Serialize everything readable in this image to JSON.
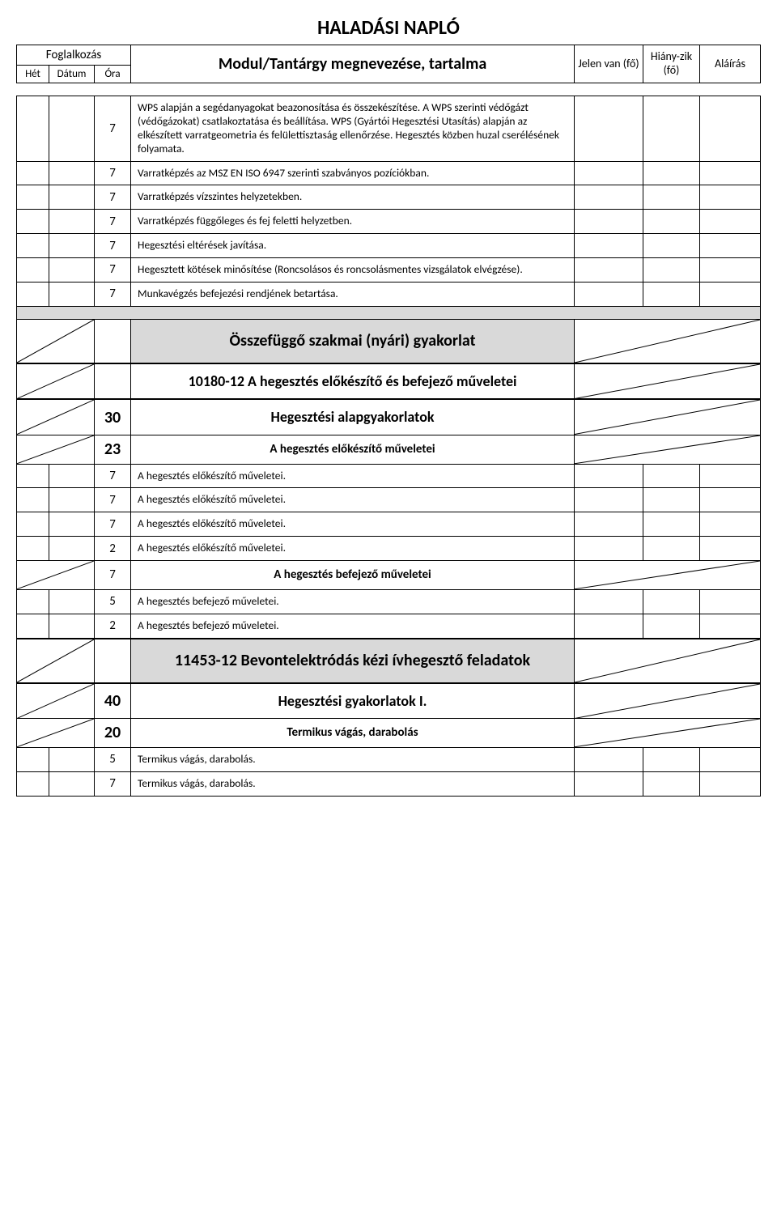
{
  "title": "HALADÁSI NAPLÓ",
  "headers": {
    "foglalkozas": "Foglalkozás",
    "het": "Hét",
    "datum": "Dátum",
    "ora": "Óra",
    "main": "Modul/Tantárgy megnevezése, tartalma",
    "jelen": "Jelen van (fő)",
    "hiany": "Hiány-zik (fő)",
    "alairas": "Aláírás"
  },
  "rows": [
    {
      "ora": "7",
      "text": "WPS alapján a segédanyagokat beazonosítása és összekészítése. A WPS szerinti védőgázt (védőgázokat) csatlakoztatása és beállítása. WPS (Gyártói Hegesztési Utasítás) alapján az elkészített varratgeometria és felülettisztaság ellenőrzése. Hegesztés közben huzal cserélésének folyamata.",
      "style": "normal"
    },
    {
      "ora": "7",
      "text": "Varratképzés az MSZ EN ISO 6947 szerinti szabványos pozíciókban.",
      "style": "normal"
    },
    {
      "ora": "7",
      "text": "Varratképzés vízszintes helyzetekben.",
      "style": "normal"
    },
    {
      "ora": "7",
      "text": "Varratképzés függőleges és fej feletti helyzetben.",
      "style": "normal"
    },
    {
      "ora": "7",
      "text": "Hegesztési eltérések javítása.",
      "style": "normal"
    },
    {
      "ora": "7",
      "text": "Hegesztett kötések minősítése (Roncsolásos és roncsolásmentes vizsgálatok elvégzése).",
      "style": "normal"
    },
    {
      "ora": "7",
      "text": "Munkavégzés befejezési rendjének betartása.",
      "style": "normal"
    },
    {
      "type": "sep-shaded"
    },
    {
      "type": "section-big",
      "text": "Összefüggő szakmai (nyári) gyakorlat",
      "shaded": true,
      "diag": true
    },
    {
      "type": "section-med",
      "text": "10180-12 A hegesztés előkészítő és befejező műveletei",
      "diag": true,
      "thick": true
    },
    {
      "ora": "30",
      "text": "Hegesztési alapgyakorlatok",
      "style": "section-med",
      "diag": true,
      "big_ora": true,
      "thick": true
    },
    {
      "ora": "23",
      "text": "A hegesztés előkészítő műveletei",
      "style": "section-bold",
      "diag": true,
      "big_ora": true
    },
    {
      "ora": "7",
      "text": "A hegesztés előkészítő műveletei.",
      "style": "normal"
    },
    {
      "ora": "7",
      "text": "A hegesztés előkészítő műveletei.",
      "style": "normal"
    },
    {
      "ora": "7",
      "text": "A hegesztés előkészítő műveletei.",
      "style": "normal"
    },
    {
      "ora": "2",
      "text": "A hegesztés előkészítő műveletei.",
      "style": "normal"
    },
    {
      "ora": "7",
      "text": "A hegesztés befejező műveletei",
      "style": "section-bold",
      "diag": true
    },
    {
      "ora": "5",
      "text": "A hegesztés befejező műveletei.",
      "style": "normal"
    },
    {
      "ora": "2",
      "text": "A hegesztés befejező műveletei.",
      "style": "normal"
    },
    {
      "type": "section-big",
      "text": "11453-12 Bevontelektródás kézi ívhegesztő feladatok",
      "shaded": true,
      "diag": true,
      "thick": true
    },
    {
      "ora": "40",
      "text": "Hegesztési gyakorlatok I.",
      "style": "section-med",
      "diag": true,
      "big_ora": true,
      "thick": true
    },
    {
      "ora": "20",
      "text": "Termikus vágás, darabolás",
      "style": "section-bold",
      "diag": true,
      "big_ora": true
    },
    {
      "ora": "5",
      "text": "Termikus vágás, darabolás.",
      "style": "normal"
    },
    {
      "ora": "7",
      "text": "Termikus vágás, darabolás.",
      "style": "normal"
    }
  ]
}
